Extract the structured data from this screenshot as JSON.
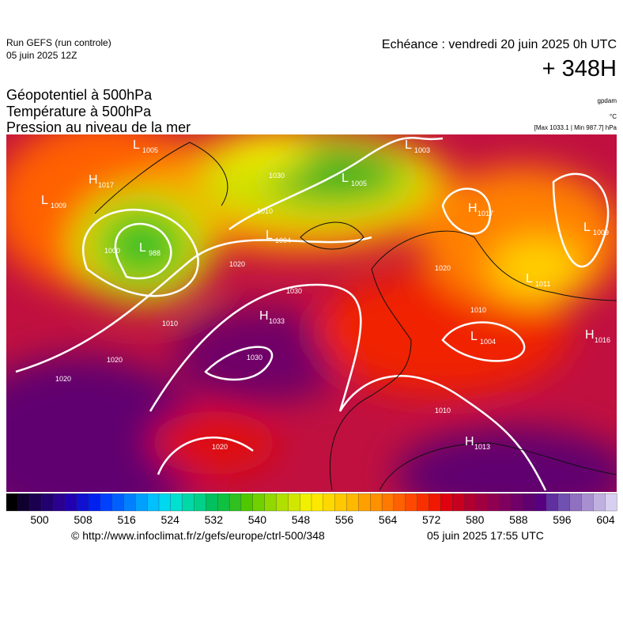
{
  "header": {
    "run": "Run GEFS (run controle)",
    "run_date": "05 juin 2025 12Z",
    "echeance": "Echéance : vendredi 20 juin 2025 0h UTC",
    "lead": "+ 348H"
  },
  "fields": [
    "Géopotentiel à 500hPa",
    "Température à 500hPa",
    "Pression au niveau de la mer"
  ],
  "units": [
    "gpdam",
    "°C",
    "[Max 1033.1 | Min 987.7] hPa"
  ],
  "centers": [
    {
      "letter": "H",
      "value": 1017
    },
    {
      "letter": "L",
      "value": 1005
    },
    {
      "letter": "L",
      "value": 1009
    },
    {
      "letter": "L",
      "value": 988
    },
    {
      "letter": "L",
      "value": 1004
    },
    {
      "letter": "L",
      "value": 1005
    },
    {
      "letter": "L",
      "value": 1003
    },
    {
      "letter": "H",
      "value": 1017
    },
    {
      "letter": "L",
      "value": 1009
    },
    {
      "letter": "L",
      "value": 1011
    },
    {
      "letter": "H",
      "value": 1033
    },
    {
      "letter": "L",
      "value": 1004
    },
    {
      "letter": "H",
      "value": 1016
    },
    {
      "letter": "H",
      "value": 1013
    }
  ],
  "contour_labels": [
    "1020",
    "1030",
    "1030",
    "1020",
    "1020",
    "1010",
    "1010",
    "1000",
    "1020",
    "1020",
    "1010",
    "1010",
    "1030"
  ],
  "colorbar": {
    "ticks": [
      500,
      508,
      516,
      524,
      532,
      540,
      548,
      556,
      564,
      572,
      580,
      588,
      596,
      604
    ],
    "colors": [
      "#000000",
      "#0f0030",
      "#1a004f",
      "#22006e",
      "#2a008e",
      "#2000b0",
      "#1010d0",
      "#0020f0",
      "#0040ff",
      "#0060ff",
      "#0080ff",
      "#00a0ff",
      "#00c0ff",
      "#00d8f0",
      "#00e0d0",
      "#00d8a8",
      "#00d088",
      "#00c060",
      "#10c040",
      "#30c020",
      "#50c800",
      "#70d000",
      "#90d800",
      "#b0e000",
      "#d0e800",
      "#f0f000",
      "#ffe800",
      "#ffd800",
      "#ffc800",
      "#ffb800",
      "#ffa000",
      "#ff9000",
      "#ff7800",
      "#ff6000",
      "#ff4800",
      "#f83000",
      "#f01800",
      "#e00010",
      "#c80020",
      "#b00030",
      "#a00040",
      "#900050",
      "#800060",
      "#700068",
      "#600070",
      "#580080",
      "#6030a0",
      "#7050b0",
      "#9070c0",
      "#a890d0",
      "#c0b0e0",
      "#d8d0f0"
    ]
  },
  "footer": {
    "url": "© http://www.infoclimat.fr/z/gefs/europe/ctrl-500/348",
    "time": "05 juin 2025 17:55 UTC"
  }
}
